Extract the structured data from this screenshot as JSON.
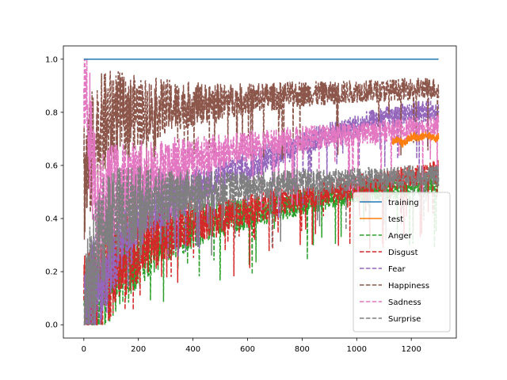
{
  "chart_data": {
    "type": "line",
    "title": "",
    "xlabel": "",
    "ylabel": "",
    "xlim": [
      -75,
      1365
    ],
    "ylim": [
      -0.05,
      1.05
    ],
    "xticks": [
      0,
      200,
      400,
      600,
      800,
      1000,
      1200
    ],
    "yticks": [
      0.0,
      0.2,
      0.4,
      0.6,
      0.8,
      1.0
    ],
    "xtick_labels": [
      "0",
      "200",
      "400",
      "600",
      "800",
      "1000",
      "1200"
    ],
    "ytick_labels": [
      "0.0",
      "0.2",
      "0.4",
      "0.6",
      "0.8",
      "1.0"
    ],
    "grid": false,
    "legend_position": "lower right",
    "series": [
      {
        "name": "training",
        "color": "#1f77b4",
        "style": "solid",
        "points": [
          [
            0,
            1.0
          ],
          [
            1300,
            1.0
          ]
        ]
      },
      {
        "name": "test",
        "color": "#ff7f0e",
        "style": "solid",
        "points": [
          [
            1130,
            0.69
          ],
          [
            1150,
            0.7
          ],
          [
            1170,
            0.68
          ],
          [
            1190,
            0.7
          ],
          [
            1210,
            0.71
          ],
          [
            1230,
            0.7
          ],
          [
            1250,
            0.72
          ],
          [
            1270,
            0.71
          ],
          [
            1290,
            0.7
          ],
          [
            1300,
            0.71
          ]
        ]
      },
      {
        "name": "Anger",
        "color": "#2ca02c",
        "style": "dashed",
        "points": [
          [
            0,
            0.0
          ],
          [
            50,
            0.1
          ],
          [
            100,
            0.2
          ],
          [
            200,
            0.28
          ],
          [
            300,
            0.33
          ],
          [
            400,
            0.37
          ],
          [
            500,
            0.4
          ],
          [
            600,
            0.42
          ],
          [
            700,
            0.44
          ],
          [
            800,
            0.46
          ],
          [
            900,
            0.48
          ],
          [
            1000,
            0.5
          ],
          [
            1100,
            0.51
          ],
          [
            1200,
            0.52
          ],
          [
            1300,
            0.53
          ]
        ]
      },
      {
        "name": "Disgust",
        "color": "#d62728",
        "style": "dashed",
        "points": [
          [
            0,
            0.0
          ],
          [
            50,
            0.12
          ],
          [
            100,
            0.22
          ],
          [
            200,
            0.3
          ],
          [
            300,
            0.34
          ],
          [
            400,
            0.38
          ],
          [
            500,
            0.41
          ],
          [
            600,
            0.43
          ],
          [
            700,
            0.46
          ],
          [
            800,
            0.48
          ],
          [
            900,
            0.5
          ],
          [
            1000,
            0.52
          ],
          [
            1100,
            0.54
          ],
          [
            1200,
            0.56
          ],
          [
            1300,
            0.58
          ]
        ]
      },
      {
        "name": "Fear",
        "color": "#9467bd",
        "style": "dashed",
        "points": [
          [
            0,
            0.0
          ],
          [
            50,
            0.15
          ],
          [
            100,
            0.3
          ],
          [
            200,
            0.4
          ],
          [
            300,
            0.48
          ],
          [
            400,
            0.52
          ],
          [
            500,
            0.56
          ],
          [
            600,
            0.6
          ],
          [
            700,
            0.64
          ],
          [
            800,
            0.68
          ],
          [
            900,
            0.72
          ],
          [
            1000,
            0.75
          ],
          [
            1100,
            0.78
          ],
          [
            1200,
            0.8
          ],
          [
            1300,
            0.81
          ]
        ]
      },
      {
        "name": "Happiness",
        "color": "#8c564b",
        "style": "dashed",
        "points": [
          [
            0,
            0.55
          ],
          [
            50,
            0.72
          ],
          [
            100,
            0.78
          ],
          [
            200,
            0.8
          ],
          [
            300,
            0.82
          ],
          [
            400,
            0.83
          ],
          [
            500,
            0.84
          ],
          [
            600,
            0.85
          ],
          [
            700,
            0.86
          ],
          [
            800,
            0.87
          ],
          [
            900,
            0.87
          ],
          [
            1000,
            0.88
          ],
          [
            1100,
            0.88
          ],
          [
            1200,
            0.89
          ],
          [
            1300,
            0.89
          ]
        ]
      },
      {
        "name": "Sadness",
        "color": "#e377c2",
        "style": "dashed",
        "points": [
          [
            0,
            1.0
          ],
          [
            50,
            0.4
          ],
          [
            100,
            0.5
          ],
          [
            200,
            0.56
          ],
          [
            300,
            0.6
          ],
          [
            400,
            0.63
          ],
          [
            500,
            0.65
          ],
          [
            600,
            0.67
          ],
          [
            700,
            0.69
          ],
          [
            800,
            0.7
          ],
          [
            900,
            0.71
          ],
          [
            1000,
            0.72
          ],
          [
            1100,
            0.73
          ],
          [
            1200,
            0.74
          ],
          [
            1300,
            0.75
          ]
        ]
      },
      {
        "name": "Surprise",
        "color": "#7f7f7f",
        "style": "dashed",
        "points": [
          [
            0,
            0.0
          ],
          [
            50,
            0.3
          ],
          [
            100,
            0.42
          ],
          [
            200,
            0.46
          ],
          [
            300,
            0.48
          ],
          [
            400,
            0.5
          ],
          [
            500,
            0.51
          ],
          [
            600,
            0.52
          ],
          [
            700,
            0.53
          ],
          [
            800,
            0.54
          ],
          [
            900,
            0.54
          ],
          [
            1000,
            0.55
          ],
          [
            1100,
            0.55
          ],
          [
            1200,
            0.56
          ],
          [
            1300,
            0.56
          ]
        ]
      }
    ]
  }
}
